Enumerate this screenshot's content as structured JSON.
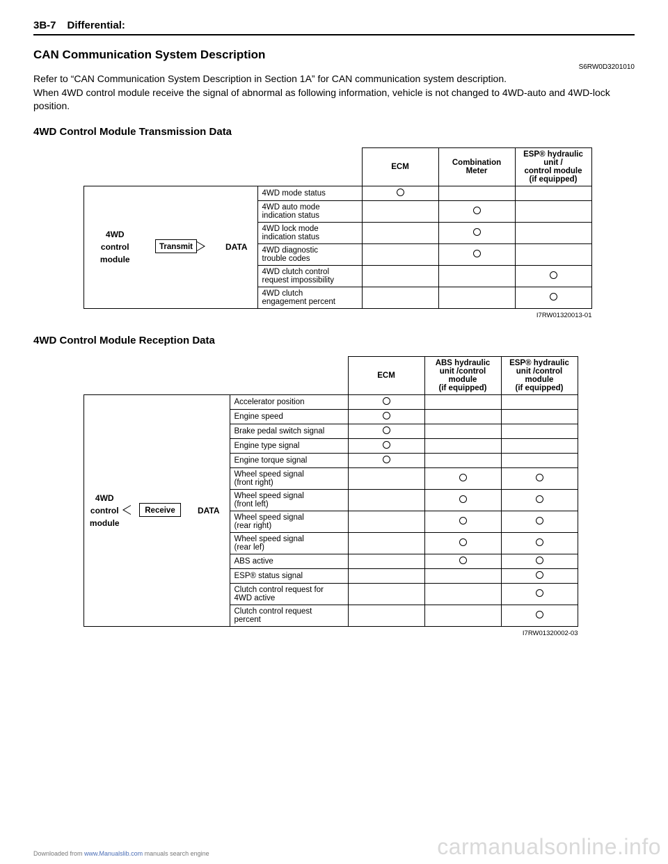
{
  "header": {
    "page_num": "3B-7",
    "section": "Differential:"
  },
  "title": "CAN Communication System Description",
  "doc_code": "S6RW0D3201010",
  "body_text": "Refer to “CAN Communication System Description in Section 1A” for CAN communication system description.\nWhen 4WD control module receive the signal of abnormal as following information, vehicle is not changed to 4WD-auto and 4WD-lock position.",
  "tx": {
    "title": "4WD Control Module Transmission Data",
    "module_label": "4WD\ncontrol\nmodule",
    "chip_label": "Transmit",
    "data_label": "DATA",
    "headers": [
      "ECM",
      "Combination\nMeter",
      "ESP® hydraulic unit /\ncontrol module\n(if equipped)"
    ],
    "rows": [
      {
        "label": "4WD mode status",
        "marks": [
          true,
          false,
          false
        ]
      },
      {
        "label": "4WD auto mode\nindication status",
        "marks": [
          false,
          true,
          false
        ]
      },
      {
        "label": "4WD lock mode\nindication status",
        "marks": [
          false,
          true,
          false
        ]
      },
      {
        "label": "4WD diagnostic\ntrouble codes",
        "marks": [
          false,
          true,
          false
        ]
      },
      {
        "label": "4WD clutch control\nrequest impossibility",
        "marks": [
          false,
          false,
          true
        ]
      },
      {
        "label": "4WD clutch\nengagement percent",
        "marks": [
          false,
          false,
          true
        ]
      }
    ],
    "fig_code": "I7RW01320013-01"
  },
  "rx": {
    "title": "4WD Control Module Reception Data",
    "module_label": "4WD\ncontrol\nmodule",
    "chip_label": "Receive",
    "data_label": "DATA",
    "headers": [
      "ECM",
      "ABS hydraulic\nunit /control\nmodule\n(if equipped)",
      "ESP® hydraulic\nunit /control\nmodule\n(if equipped)"
    ],
    "rows": [
      {
        "label": "Accelerator position",
        "marks": [
          true,
          false,
          false
        ]
      },
      {
        "label": "Engine speed",
        "marks": [
          true,
          false,
          false
        ]
      },
      {
        "label": "Brake pedal switch signal",
        "marks": [
          true,
          false,
          false
        ]
      },
      {
        "label": "Engine type signal",
        "marks": [
          true,
          false,
          false
        ]
      },
      {
        "label": "Engine torque signal",
        "marks": [
          true,
          false,
          false
        ]
      },
      {
        "label": "Wheel speed signal\n (front right)",
        "marks": [
          false,
          true,
          true
        ]
      },
      {
        "label": "Wheel speed signal\n (front left)",
        "marks": [
          false,
          true,
          true
        ]
      },
      {
        "label": "Wheel speed signal\n (rear right)",
        "marks": [
          false,
          true,
          true
        ]
      },
      {
        "label": "Wheel speed signal\n (rear lef)",
        "marks": [
          false,
          true,
          true
        ]
      },
      {
        "label": "ABS active",
        "marks": [
          false,
          true,
          true
        ]
      },
      {
        "label": "ESP® status signal",
        "marks": [
          false,
          false,
          true
        ]
      },
      {
        "label": "Clutch control request for\n4WD active",
        "marks": [
          false,
          false,
          true
        ]
      },
      {
        "label": "Clutch control request\npercent",
        "marks": [
          false,
          false,
          true
        ]
      }
    ],
    "fig_code": "I7RW01320002-03"
  },
  "footer": {
    "text_prefix": "Downloaded from ",
    "link": "www.Manualslib.com",
    "text_suffix": " manuals search engine"
  },
  "watermark": "carmanualsonline.info",
  "widths": {
    "tx": {
      "mod": 90,
      "chip": 100,
      "data": 60,
      "label": 150,
      "col": 110
    },
    "rx": {
      "mod": 60,
      "chip": 90,
      "data": 60,
      "label": 170,
      "col": 110
    }
  }
}
